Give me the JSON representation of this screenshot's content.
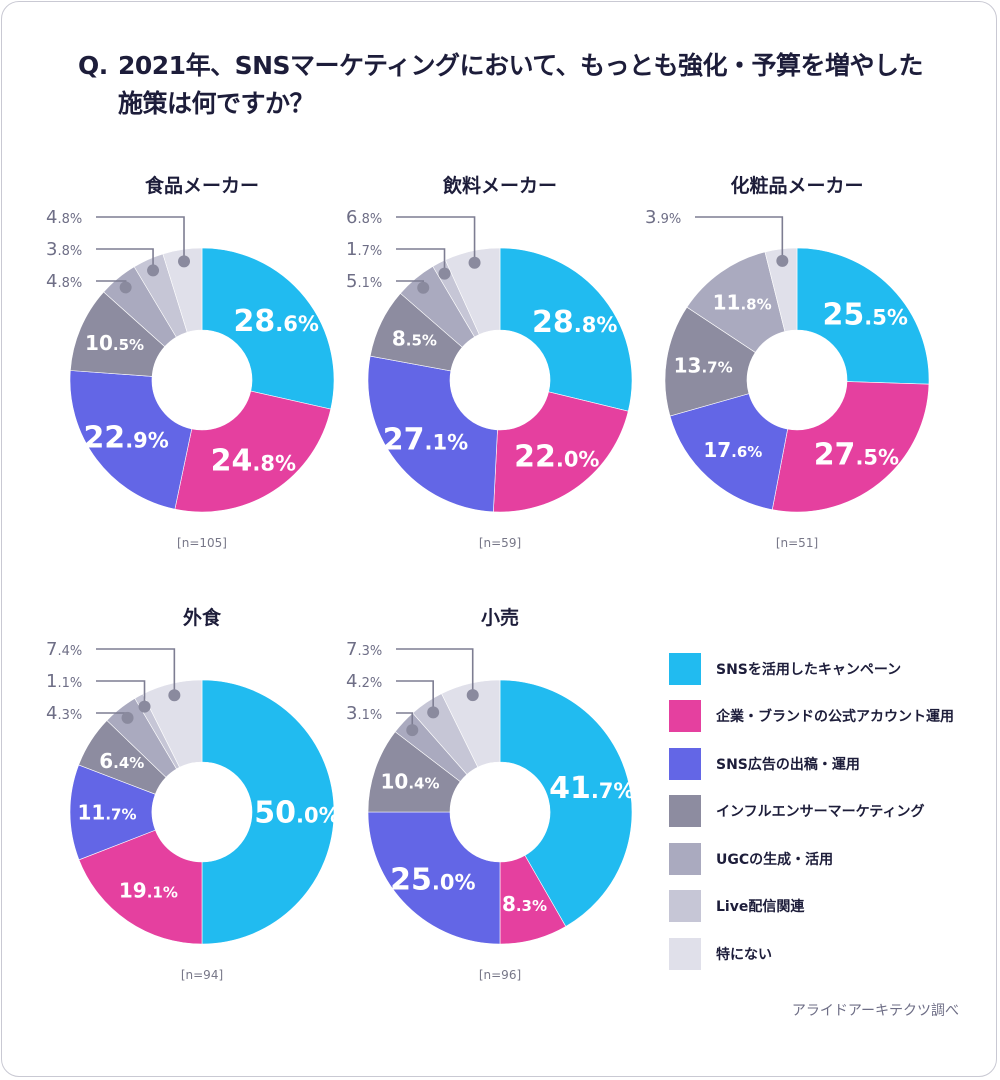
{
  "question": {
    "prefix": "Q.",
    "line1": "2021年、SNSマーケティングにおいて、もっとも強化・予算を増やした",
    "line2": "施策は何ですか？"
  },
  "legend": [
    {
      "key": "campaign",
      "label": "SNSを活用したキャンペーン",
      "color": "#21bbf0"
    },
    {
      "key": "official",
      "label": "企業・ブランドの公式アカウント運用",
      "color": "#e5409f"
    },
    {
      "key": "ads",
      "label": "SNS広告の出稿・運用",
      "color": "#6366e6"
    },
    {
      "key": "influencer",
      "label": "インフルエンサーマーケティング",
      "color": "#8d8ca0"
    },
    {
      "key": "ugc",
      "label": "UGCの生成・活用",
      "color": "#aaaabf"
    },
    {
      "key": "live",
      "label": "Live配信関連",
      "color": "#c6c6d6"
    },
    {
      "key": "none",
      "label": "特にない",
      "color": "#e0e0ea"
    }
  ],
  "source": "アライドアーキテクツ調べ",
  "chart_data": [
    {
      "type": "pie",
      "title": "食品メーカー",
      "n_label": "[n=105]",
      "categories": [
        "SNSを活用したキャンペーン",
        "企業・ブランドの公式アカウント運用",
        "SNS広告の出稿・運用",
        "インフルエンサーマーケティング",
        "UGCの生成・活用",
        "Live配信関連",
        "特にない"
      ],
      "values": [
        28.6,
        24.8,
        22.9,
        10.5,
        4.8,
        3.8,
        4.8
      ],
      "labels": [
        "28.6%",
        "24.8%",
        "22.9%",
        "10.5%",
        "4.8%",
        "3.8%",
        "4.8%"
      ],
      "unit": "%"
    },
    {
      "type": "pie",
      "title": "飲料メーカー",
      "n_label": "[n=59]",
      "categories": [
        "SNSを活用したキャンペーン",
        "企業・ブランドの公式アカウント運用",
        "SNS広告の出稿・運用",
        "インフルエンサーマーケティング",
        "UGCの生成・活用",
        "Live配信関連",
        "特にない"
      ],
      "values": [
        28.8,
        22.0,
        27.1,
        8.5,
        5.1,
        1.7,
        6.8
      ],
      "labels": [
        "28.8%",
        "22.0%",
        "27.1%",
        "8.5%",
        "5.1%",
        "1.7%",
        "6.8%"
      ],
      "unit": "%"
    },
    {
      "type": "pie",
      "title": "化粧品メーカー",
      "n_label": "[n=51]",
      "categories": [
        "SNSを活用したキャンペーン",
        "企業・ブランドの公式アカウント運用",
        "SNS広告の出稿・運用",
        "インフルエンサーマーケティング",
        "UGCの生成・活用",
        "Live配信関連",
        "特にない"
      ],
      "values": [
        25.5,
        27.5,
        17.6,
        13.7,
        11.8,
        0,
        3.9
      ],
      "labels": [
        "25.5%",
        "27.5%",
        "17.6%",
        "13.7%",
        "11.8%",
        "",
        "3.9%"
      ],
      "unit": "%"
    },
    {
      "type": "pie",
      "title": "外食",
      "n_label": "[n=94]",
      "categories": [
        "SNSを活用したキャンペーン",
        "企業・ブランドの公式アカウント運用",
        "SNS広告の出稿・運用",
        "インフルエンサーマーケティング",
        "UGCの生成・活用",
        "Live配信関連",
        "特にない"
      ],
      "values": [
        50.0,
        19.1,
        11.7,
        6.4,
        4.3,
        1.1,
        7.4
      ],
      "labels": [
        "50.0%",
        "19.1%",
        "11.7%",
        "6.4%",
        "4.3%",
        "1.1%",
        "7.4%"
      ],
      "unit": "%"
    },
    {
      "type": "pie",
      "title": "小売",
      "n_label": "[n=96]",
      "categories": [
        "SNSを活用したキャンペーン",
        "企業・ブランドの公式アカウント運用",
        "SNS広告の出稿・運用",
        "インフルエンサーマーケティング",
        "UGCの生成・活用",
        "Live配信関連",
        "特にない"
      ],
      "values": [
        41.7,
        8.3,
        25.0,
        10.4,
        3.1,
        4.2,
        7.3
      ],
      "labels": [
        "41.7%",
        "8.3%",
        "25.0%",
        "10.4%",
        "3.1%",
        "4.2%",
        "7.3%"
      ],
      "unit": "%"
    }
  ]
}
